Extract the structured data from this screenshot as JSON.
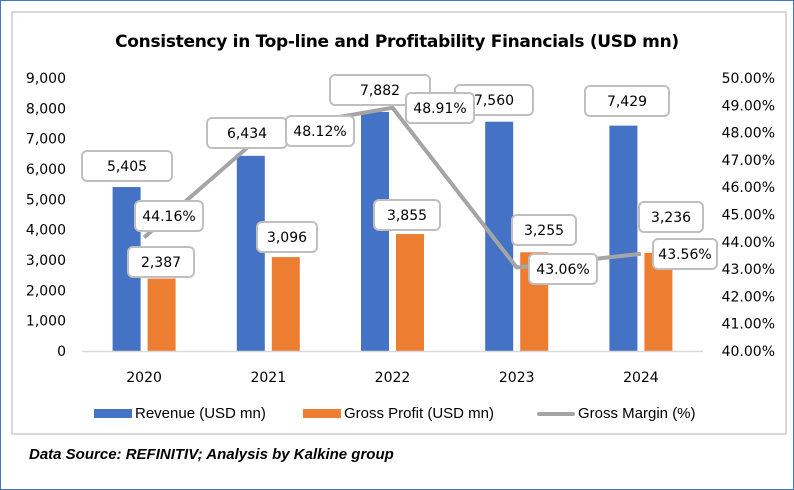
{
  "chart_data": {
    "type": "bar",
    "title": "Consistency in Top-line and Profitability Financials (USD mn)",
    "categories": [
      "2020",
      "2021",
      "2022",
      "2023",
      "2024"
    ],
    "series": [
      {
        "name": "Revenue (USD mn)",
        "type": "bar",
        "axis": "left",
        "color": "#4472c4",
        "values": [
          5405,
          6434,
          7882,
          7560,
          7429
        ],
        "labels": [
          "5,405",
          "6,434",
          "7,882",
          "7,560",
          "7,429"
        ]
      },
      {
        "name": "Gross Profit (USD mn)",
        "type": "bar",
        "axis": "left",
        "color": "#ed7d31",
        "values": [
          2387,
          3096,
          3855,
          3255,
          3236
        ],
        "labels": [
          "2,387",
          "3,096",
          "3,855",
          "3,255",
          "3,236"
        ]
      },
      {
        "name": "Gross Margin (%)",
        "type": "line",
        "axis": "right",
        "color": "#a5a5a5",
        "values": [
          44.16,
          48.12,
          48.91,
          43.06,
          43.56
        ],
        "labels": [
          "44.16%",
          "48.12%",
          "48.91%",
          "43.06%",
          "43.56%"
        ]
      }
    ],
    "left_axis": {
      "ylim": [
        0,
        9000
      ],
      "ticks": [
        "0",
        "1,000",
        "2,000",
        "3,000",
        "4,000",
        "5,000",
        "6,000",
        "7,000",
        "8,000",
        "9,000"
      ]
    },
    "right_axis": {
      "ylim": [
        40,
        50
      ],
      "ticks": [
        "40.00%",
        "41.00%",
        "42.00%",
        "43.00%",
        "44.00%",
        "45.00%",
        "46.00%",
        "47.00%",
        "48.00%",
        "49.00%",
        "50.00%"
      ]
    },
    "xlabel": "",
    "ylabel": "",
    "grid": false,
    "legend_position": "bottom"
  },
  "footer": {
    "source": "Data Source: REFINITIV; Analysis by Kalkine group"
  }
}
